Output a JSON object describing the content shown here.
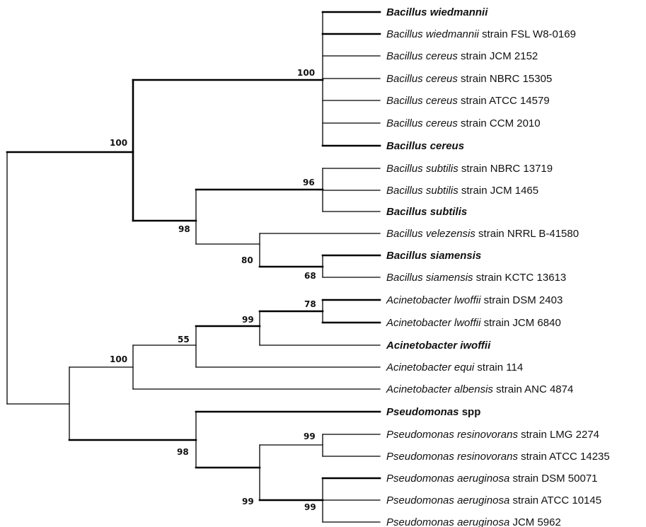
{
  "tree": {
    "leaves": [
      {
        "id": "L1",
        "italic": "Bacillus wiedmannii",
        "rest": "",
        "bold": true
      },
      {
        "id": "L2",
        "italic": "Bacillus wiedmannii",
        "rest": " strain FSL W8-0169",
        "bold": false
      },
      {
        "id": "L3",
        "italic": "Bacillus cereus",
        "rest": " strain JCM 2152",
        "bold": false
      },
      {
        "id": "L4",
        "italic": "Bacillus cereus",
        "rest": " strain NBRC 15305",
        "bold": false
      },
      {
        "id": "L5",
        "italic": "Bacillus cereus",
        "rest": " strain ATCC 14579",
        "bold": false
      },
      {
        "id": "L6",
        "italic": "Bacillus cereus",
        "rest": " strain CCM 2010",
        "bold": false
      },
      {
        "id": "L7",
        "italic": "Bacillus cereus",
        "rest": "",
        "bold": true
      },
      {
        "id": "L8",
        "italic": "Bacillus subtilis",
        "rest": " strain NBRC 13719",
        "bold": false
      },
      {
        "id": "L9",
        "italic": "Bacillus subtilis",
        "rest": " strain JCM 1465",
        "bold": false
      },
      {
        "id": "L10",
        "italic": "Bacillus  subtilis",
        "rest": "",
        "bold": true
      },
      {
        "id": "L11",
        "italic": "Bacillus velezensis",
        "rest": " strain NRRL B-41580",
        "bold": false
      },
      {
        "id": "L12",
        "italic": "Bacillus siamensis",
        "rest": "",
        "bold": true
      },
      {
        "id": "L13",
        "italic": "Bacillus siamensis",
        "rest": " strain KCTC 13613",
        "bold": false
      },
      {
        "id": "L14",
        "italic": "Acinetobacter lwoffii",
        "rest": " strain DSM 2403",
        "bold": false
      },
      {
        "id": "L15",
        "italic": "Acinetobacter lwoffii",
        "rest": " strain JCM 6840",
        "bold": false
      },
      {
        "id": "L16",
        "italic": "Acinetobacter iwoffii",
        "rest": "",
        "bold": true
      },
      {
        "id": "L17",
        "italic": "Acinetobacter equi",
        "rest": " strain 114",
        "bold": false
      },
      {
        "id": "L18",
        "italic": "Acinetobacter albensis",
        "rest": " strain ANC 4874",
        "bold": false
      },
      {
        "id": "L19",
        "italic": "Pseudomonas",
        "rest": " spp",
        "bold": true
      },
      {
        "id": "L20",
        "italic": "Pseudomonas resinovorans",
        "rest": " strain LMG 2274",
        "bold": false
      },
      {
        "id": "L21",
        "italic": "Pseudomonas resinovorans",
        "rest": " strain ATCC 14235",
        "bold": false
      },
      {
        "id": "L22",
        "italic": "Pseudomonas aeruginosa",
        "rest": " strain DSM 50071",
        "bold": false
      },
      {
        "id": "L23",
        "italic": "Pseudomonas aeruginosa",
        "rest": " strain ATCC 10145",
        "bold": false
      },
      {
        "id": "L24",
        "italic": "Pseudomonas aeruginosa",
        "rest": " JCM 5962",
        "bold": false
      }
    ],
    "bootstrap": {
      "cereus_clade": "100",
      "bacillus_root": "100",
      "subtilis_clade": "96",
      "subtilis_group": "98",
      "velezensis_siamensis": "80",
      "siamensis_pair": "68",
      "lwoffii_pair": "78",
      "lwoffii_iwoffii": "99",
      "acinetobacter_inner": "55",
      "acinetobacter_clade": "100",
      "resinovorans_pair": "99",
      "pseudomonas_clade": "98",
      "pseudomonas_inner": "99",
      "aeruginosa_clade": "99"
    }
  }
}
